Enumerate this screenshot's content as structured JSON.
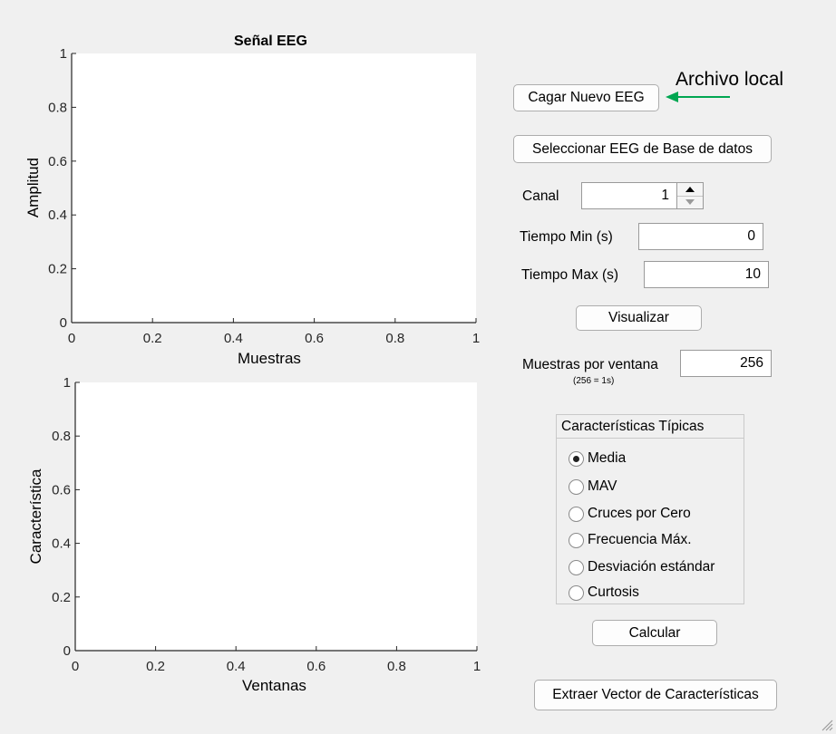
{
  "plot1": {
    "title": "Señal EEG",
    "xlabel": "Muestras",
    "ylabel": "Amplitud"
  },
  "plot2": {
    "title": "",
    "xlabel": "Ventanas",
    "ylabel": "Característica"
  },
  "chart_data": [
    {
      "type": "line",
      "title": "Señal EEG",
      "xlabel": "Muestras",
      "ylabel": "Amplitud",
      "xlim": [
        0,
        1
      ],
      "ylim": [
        0,
        1
      ],
      "x_ticks": [
        "0",
        "0.2",
        "0.4",
        "0.6",
        "0.8",
        "1"
      ],
      "y_ticks": [
        "0",
        "0.2",
        "0.4",
        "0.6",
        "0.8",
        "1"
      ],
      "grid": false,
      "series": []
    },
    {
      "type": "line",
      "title": "",
      "xlabel": "Ventanas",
      "ylabel": "Característica",
      "xlim": [
        0,
        1
      ],
      "ylim": [
        0,
        1
      ],
      "x_ticks": [
        "0",
        "0.2",
        "0.4",
        "0.6",
        "0.8",
        "1"
      ],
      "y_ticks": [
        "0",
        "0.2",
        "0.4",
        "0.6",
        "0.8",
        "1"
      ],
      "grid": false,
      "series": []
    }
  ],
  "controls": {
    "load_button": "Cagar Nuevo EEG",
    "db_button": "Seleccionar EEG de Base de datos",
    "canal_label": "Canal",
    "canal_value": "1",
    "tmin_label": "Tiempo Min (s)",
    "tmin_value": "0",
    "tmax_label": "Tiempo Max (s)",
    "tmax_value": "10",
    "visualize_button": "Visualizar",
    "window_label": "Muestras por ventana",
    "window_hint": "(256 = 1s)",
    "window_value": "256",
    "calc_button": "Calcular",
    "extract_button": "Extraer Vector de Características"
  },
  "features_panel": {
    "title": "Características Típicas",
    "options": [
      {
        "label": "Media",
        "selected": true
      },
      {
        "label": "MAV",
        "selected": false
      },
      {
        "label": "Cruces por Cero",
        "selected": false
      },
      {
        "label": "Frecuencia Máx.",
        "selected": false
      },
      {
        "label": "Desviación estándar",
        "selected": false
      },
      {
        "label": "Curtosis",
        "selected": false
      }
    ]
  },
  "annotation": {
    "text": "Archivo local",
    "color": "#00a651"
  }
}
